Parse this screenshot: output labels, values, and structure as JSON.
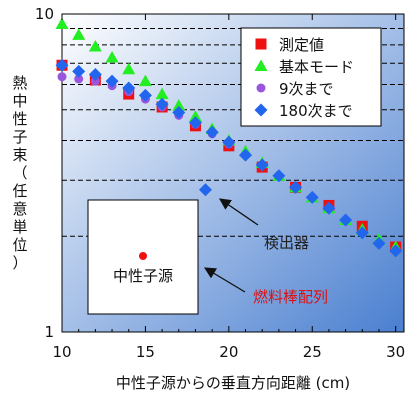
{
  "chart_data": {
    "type": "scatter",
    "xlabel": "中性子源からの垂直方向距離 (cm)",
    "ylabel": "熱中性子束（任意単位）",
    "xlim": [
      10,
      30.5
    ],
    "ylim": [
      1,
      10
    ],
    "y_scale": "log",
    "x_ticks": [
      "10",
      "15",
      "20",
      "25",
      "30"
    ],
    "y_ticks": [
      "1",
      "10"
    ],
    "grid": "horizontal dashed",
    "legend_position": "top-right",
    "series": [
      {
        "name": "測定値",
        "marker": "square",
        "color": "#ee1111",
        "x": [
          10,
          12,
          14,
          16,
          18,
          20,
          22,
          24,
          26,
          28,
          30
        ],
        "y": [
          6.9,
          6.2,
          5.6,
          5.1,
          4.45,
          3.85,
          3.3,
          2.85,
          2.5,
          2.15,
          1.85
        ]
      },
      {
        "name": "基本モード",
        "marker": "triangle",
        "color": "#22ee22",
        "x": [
          10,
          11,
          12,
          13,
          14,
          15,
          16,
          17,
          18,
          19,
          20,
          21,
          22,
          23,
          24,
          25,
          26,
          27,
          28,
          29,
          30
        ],
        "y": [
          9.3,
          8.6,
          7.9,
          7.3,
          6.7,
          6.15,
          5.6,
          5.15,
          4.75,
          4.35,
          4.0,
          3.7,
          3.4,
          3.1,
          2.85,
          2.65,
          2.45,
          2.25,
          2.1,
          1.95,
          1.85
        ]
      },
      {
        "name": "9次まで",
        "marker": "circle",
        "color": "#9955dd",
        "x": [
          10,
          11,
          12,
          13,
          14,
          15,
          16,
          17,
          18,
          19,
          20,
          21,
          22,
          23,
          24,
          25,
          26,
          27,
          28,
          29,
          30
        ],
        "y": [
          6.35,
          6.25,
          6.15,
          5.95,
          5.7,
          5.4,
          5.1,
          4.8,
          4.5,
          4.2,
          3.9,
          3.6,
          3.35,
          3.1,
          2.85,
          2.65,
          2.45,
          2.25,
          2.05,
          1.9,
          1.8
        ]
      },
      {
        "name": "180次まで",
        "marker": "diamond",
        "color": "#2266ee",
        "x": [
          10,
          11,
          12,
          13,
          14,
          15,
          16,
          17,
          18,
          18.6,
          19,
          20,
          21,
          22,
          23,
          24,
          25,
          26,
          27,
          28,
          29,
          30
        ],
        "y": [
          6.9,
          6.6,
          6.45,
          6.15,
          5.85,
          5.55,
          5.2,
          4.9,
          4.55,
          2.8,
          4.25,
          3.95,
          3.6,
          3.35,
          3.1,
          2.85,
          2.65,
          2.45,
          2.25,
          2.05,
          1.9,
          1.8
        ]
      }
    ],
    "annotations": [
      {
        "text": "検出器",
        "color": "#222222"
      },
      {
        "text": "燃料棒配列",
        "color": "#dd1111"
      }
    ],
    "inset": {
      "label": "中性子源",
      "dot_color": "#ee1111"
    }
  },
  "colors": {
    "plot_gradient_start": "#ffffff",
    "plot_gradient_end": "#4a7fd0",
    "legend_background": "#ffffff"
  }
}
